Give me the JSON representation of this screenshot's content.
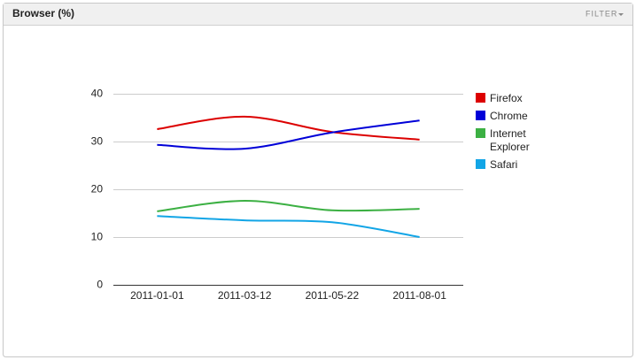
{
  "toolbar": {
    "filter": "FILTER"
  },
  "chart_data": {
    "type": "line",
    "title": "Browser (%)",
    "categories": [
      "2011-01-01",
      "2011-03-12",
      "2011-05-22",
      "2011-08-01"
    ],
    "series": [
      {
        "name": "Firefox",
        "color": "#dc0000",
        "values": [
          32.6,
          35.2,
          32.0,
          30.4
        ]
      },
      {
        "name": "Chrome",
        "color": "#0000d8",
        "values": [
          29.3,
          28.5,
          31.9,
          34.4
        ]
      },
      {
        "name": "Internet Explorer",
        "color": "#3cb043",
        "values": [
          15.4,
          17.6,
          15.6,
          15.9
        ]
      },
      {
        "name": "Safari",
        "color": "#12a5e6",
        "values": [
          14.4,
          13.5,
          13.1,
          10.0
        ]
      }
    ],
    "ylim": [
      0,
      40
    ],
    "yticks": [
      0,
      10,
      20,
      30,
      40
    ],
    "grid": true,
    "smooth": true,
    "legend": "right"
  }
}
